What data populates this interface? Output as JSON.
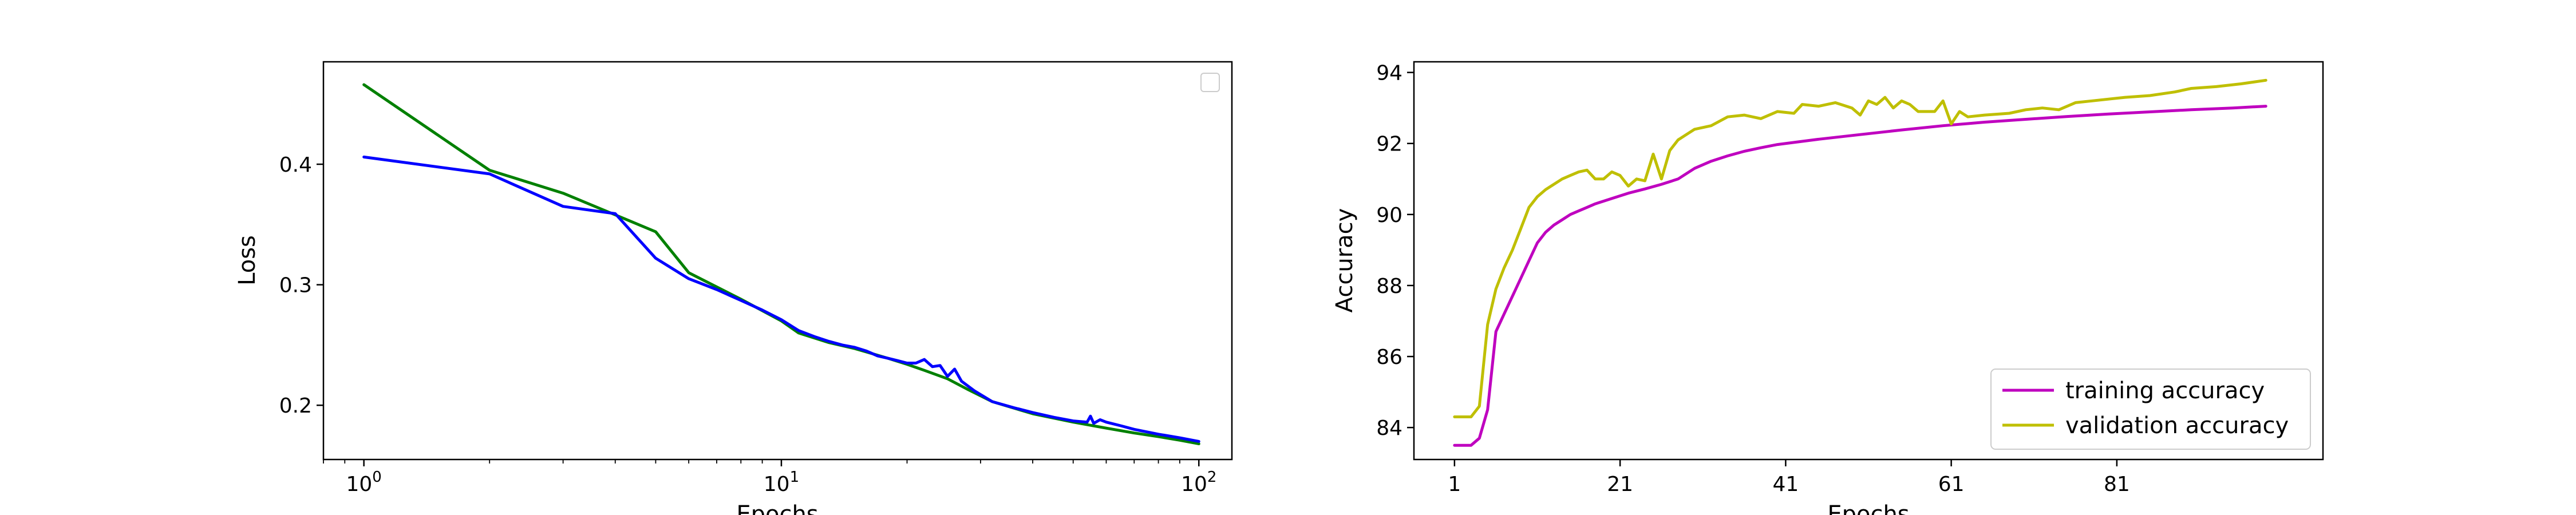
{
  "chart_data": [
    {
      "type": "line",
      "xlabel": "Epochs",
      "ylabel": "Loss",
      "xscale": "log",
      "xlim": [
        0.8,
        120
      ],
      "ylim": [
        0.155,
        0.485
      ],
      "xticks": [
        1,
        10,
        100
      ],
      "xtick_labels": [
        {
          "base": "10",
          "exp": "0"
        },
        {
          "base": "10",
          "exp": "1"
        },
        {
          "base": "10",
          "exp": "2"
        }
      ],
      "yticks": [
        0.2,
        0.3,
        0.4
      ],
      "ytick_labels": [
        "0.2",
        "0.3",
        "0.4"
      ],
      "grid": false,
      "legend": {
        "placement": "top-right",
        "entries": []
      },
      "series": [
        {
          "color": "#008000",
          "points": [
            [
              1,
              0.466
            ],
            [
              2,
              0.395
            ],
            [
              3,
              0.376
            ],
            [
              4,
              0.358
            ],
            [
              5,
              0.344
            ],
            [
              6,
              0.31
            ],
            [
              8,
              0.288
            ],
            [
              10,
              0.27
            ],
            [
              11,
              0.26
            ],
            [
              13,
              0.252
            ],
            [
              15,
              0.247
            ],
            [
              18,
              0.239
            ],
            [
              20,
              0.234
            ],
            [
              22,
              0.229
            ],
            [
              25,
              0.222
            ],
            [
              28,
              0.213
            ],
            [
              32,
              0.203
            ],
            [
              40,
              0.193
            ],
            [
              50,
              0.186
            ],
            [
              60,
              0.181
            ],
            [
              70,
              0.177
            ],
            [
              80,
              0.174
            ],
            [
              90,
              0.171
            ],
            [
              100,
              0.168
            ]
          ]
        },
        {
          "color": "#0000ff",
          "points": [
            [
              1,
              0.406
            ],
            [
              2,
              0.392
            ],
            [
              3,
              0.365
            ],
            [
              4,
              0.359
            ],
            [
              5,
              0.322
            ],
            [
              6,
              0.305
            ],
            [
              7,
              0.296
            ],
            [
              8,
              0.287
            ],
            [
              9,
              0.279
            ],
            [
              10,
              0.271
            ],
            [
              11,
              0.262
            ],
            [
              12,
              0.257
            ],
            [
              13,
              0.253
            ],
            [
              14,
              0.25
            ],
            [
              15,
              0.248
            ],
            [
              16,
              0.245
            ],
            [
              17,
              0.241
            ],
            [
              18,
              0.239
            ],
            [
              19,
              0.237
            ],
            [
              20,
              0.235
            ],
            [
              21,
              0.235
            ],
            [
              22,
              0.238
            ],
            [
              23,
              0.232
            ],
            [
              24,
              0.233
            ],
            [
              25,
              0.224
            ],
            [
              26,
              0.23
            ],
            [
              27,
              0.22
            ],
            [
              29,
              0.212
            ],
            [
              32,
              0.203
            ],
            [
              36,
              0.198
            ],
            [
              40,
              0.194
            ],
            [
              45,
              0.19
            ],
            [
              50,
              0.187
            ],
            [
              54,
              0.186
            ],
            [
              55,
              0.191
            ],
            [
              56,
              0.185
            ],
            [
              58,
              0.188
            ],
            [
              60,
              0.186
            ],
            [
              65,
              0.183
            ],
            [
              70,
              0.18
            ],
            [
              80,
              0.176
            ],
            [
              90,
              0.173
            ],
            [
              100,
              0.17
            ]
          ]
        }
      ]
    },
    {
      "type": "line",
      "xlabel": "Epochs",
      "ylabel": "Accuracy",
      "xlim": [
        -3.9,
        105.9
      ],
      "ylim": [
        83.1,
        94.3
      ],
      "xticks": [
        1,
        21,
        41,
        61,
        81
      ],
      "xtick_labels": [
        "1",
        "21",
        "41",
        "61",
        "81"
      ],
      "yticks": [
        84,
        86,
        88,
        90,
        92,
        94
      ],
      "ytick_labels": [
        "84",
        "86",
        "88",
        "90",
        "92",
        "94"
      ],
      "grid": false,
      "legend": {
        "placement": "lower-right",
        "entries": [
          "training accuracy",
          "validation accuracy"
        ]
      },
      "series": [
        {
          "name": "training accuracy",
          "color": "#bf00bf",
          "points": [
            [
              1,
              83.5
            ],
            [
              2,
              83.5
            ],
            [
              3,
              83.5
            ],
            [
              4,
              83.7
            ],
            [
              5,
              84.5
            ],
            [
              6,
              86.7
            ],
            [
              7,
              87.2
            ],
            [
              8,
              87.7
            ],
            [
              9,
              88.2
            ],
            [
              10,
              88.7
            ],
            [
              11,
              89.2
            ],
            [
              12,
              89.5
            ],
            [
              13,
              89.7
            ],
            [
              14,
              89.85
            ],
            [
              15,
              90.0
            ],
            [
              16,
              90.1
            ],
            [
              17,
              90.2
            ],
            [
              18,
              90.3
            ],
            [
              20,
              90.45
            ],
            [
              22,
              90.6
            ],
            [
              24,
              90.72
            ],
            [
              26,
              90.85
            ],
            [
              28,
              91.0
            ],
            [
              30,
              91.3
            ],
            [
              32,
              91.5
            ],
            [
              34,
              91.65
            ],
            [
              36,
              91.78
            ],
            [
              38,
              91.88
            ],
            [
              40,
              91.97
            ],
            [
              45,
              92.12
            ],
            [
              50,
              92.25
            ],
            [
              55,
              92.38
            ],
            [
              60,
              92.5
            ],
            [
              65,
              92.6
            ],
            [
              70,
              92.68
            ],
            [
              75,
              92.76
            ],
            [
              80,
              92.83
            ],
            [
              85,
              92.89
            ],
            [
              90,
              92.95
            ],
            [
              95,
              93.0
            ],
            [
              99,
              93.05
            ]
          ]
        },
        {
          "name": "validation accuracy",
          "color": "#bfbf00",
          "points": [
            [
              1,
              84.3
            ],
            [
              2,
              84.3
            ],
            [
              3,
              84.3
            ],
            [
              4,
              84.6
            ],
            [
              5,
              86.9
            ],
            [
              6,
              87.9
            ],
            [
              7,
              88.5
            ],
            [
              8,
              89.0
            ],
            [
              9,
              89.6
            ],
            [
              10,
              90.2
            ],
            [
              11,
              90.5
            ],
            [
              12,
              90.7
            ],
            [
              13,
              90.85
            ],
            [
              14,
              91.0
            ],
            [
              15,
              91.1
            ],
            [
              16,
              91.2
            ],
            [
              17,
              91.25
            ],
            [
              18,
              91.0
            ],
            [
              19,
              91.0
            ],
            [
              20,
              91.2
            ],
            [
              21,
              91.1
            ],
            [
              22,
              90.8
            ],
            [
              23,
              91.0
            ],
            [
              24,
              90.95
            ],
            [
              25,
              91.7
            ],
            [
              26,
              91.0
            ],
            [
              27,
              91.8
            ],
            [
              28,
              92.1
            ],
            [
              29,
              92.25
            ],
            [
              30,
              92.4
            ],
            [
              32,
              92.5
            ],
            [
              34,
              92.75
            ],
            [
              36,
              92.8
            ],
            [
              38,
              92.7
            ],
            [
              40,
              92.9
            ],
            [
              42,
              92.85
            ],
            [
              43,
              93.1
            ],
            [
              45,
              93.05
            ],
            [
              47,
              93.15
            ],
            [
              49,
              93.0
            ],
            [
              50,
              92.8
            ],
            [
              51,
              93.2
            ],
            [
              52,
              93.1
            ],
            [
              53,
              93.3
            ],
            [
              54,
              93.0
            ],
            [
              55,
              93.2
            ],
            [
              56,
              93.1
            ],
            [
              57,
              92.9
            ],
            [
              59,
              92.9
            ],
            [
              60,
              93.2
            ],
            [
              61,
              92.55
            ],
            [
              62,
              92.9
            ],
            [
              63,
              92.75
            ],
            [
              65,
              92.8
            ],
            [
              68,
              92.85
            ],
            [
              70,
              92.95
            ],
            [
              72,
              93.0
            ],
            [
              74,
              92.95
            ],
            [
              76,
              93.15
            ],
            [
              78,
              93.2
            ],
            [
              80,
              93.25
            ],
            [
              82,
              93.3
            ],
            [
              85,
              93.35
            ],
            [
              88,
              93.45
            ],
            [
              90,
              93.55
            ],
            [
              93,
              93.6
            ],
            [
              96,
              93.68
            ],
            [
              99,
              93.78
            ]
          ]
        }
      ]
    }
  ]
}
